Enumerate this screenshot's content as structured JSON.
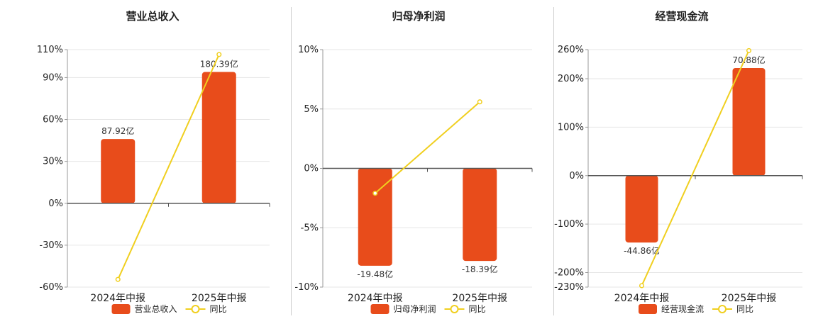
{
  "chart_data": [
    {
      "type": "bar",
      "title": "营业总收入",
      "categories": [
        "2024年中报",
        "2025年中报"
      ],
      "series": [
        {
          "name": "营业总收入",
          "kind": "bar",
          "values": [
            46.0,
            94.0
          ],
          "labels": [
            "87.92亿",
            "180.39亿"
          ]
        },
        {
          "name": "同比",
          "kind": "line",
          "values": [
            -54.5,
            106.5
          ]
        }
      ],
      "ylim": [
        -60,
        110
      ],
      "yticks": [
        -60,
        -30,
        0,
        30,
        60,
        90,
        110
      ],
      "ytick_labels": [
        "-60%",
        "-30%",
        "0%",
        "30%",
        "60%",
        "90%",
        "110%"
      ],
      "grid": true,
      "legend": "bottom-center",
      "colors": {
        "bar": "#e84c1b",
        "line": "#f0cf1f"
      }
    },
    {
      "type": "bar",
      "title": "归母净利润",
      "categories": [
        "2024年中报",
        "2025年中报"
      ],
      "series": [
        {
          "name": "归母净利润",
          "kind": "bar",
          "values": [
            -8.2,
            -7.8
          ],
          "labels": [
            "-19.48亿",
            "-18.39亿"
          ]
        },
        {
          "name": "同比",
          "kind": "line",
          "values": [
            -2.1,
            5.6
          ]
        }
      ],
      "ylim": [
        -10,
        10
      ],
      "yticks": [
        -10,
        -5,
        0,
        5,
        10
      ],
      "ytick_labels": [
        "-10%",
        "-5%",
        "0%",
        "5%",
        "10%"
      ],
      "grid": true,
      "legend": "bottom-center",
      "colors": {
        "bar": "#e84c1b",
        "line": "#f0cf1f"
      }
    },
    {
      "type": "bar",
      "title": "经营现金流",
      "categories": [
        "2024年中报",
        "2025年中报"
      ],
      "series": [
        {
          "name": "经营现金流",
          "kind": "bar",
          "values": [
            -138,
            222
          ],
          "labels": [
            "-44.86亿",
            "70.88亿"
          ]
        },
        {
          "name": "同比",
          "kind": "line",
          "values": [
            -227,
            258
          ]
        }
      ],
      "ylim": [
        -230,
        260
      ],
      "yticks": [
        -230,
        -200,
        -100,
        0,
        100,
        200,
        260
      ],
      "ytick_labels": [
        "-230%",
        "-200%",
        "-100%",
        "0%",
        "100%",
        "200%",
        "260%"
      ],
      "grid": true,
      "legend": "bottom-center",
      "colors": {
        "bar": "#e84c1b",
        "line": "#f0cf1f"
      }
    }
  ]
}
